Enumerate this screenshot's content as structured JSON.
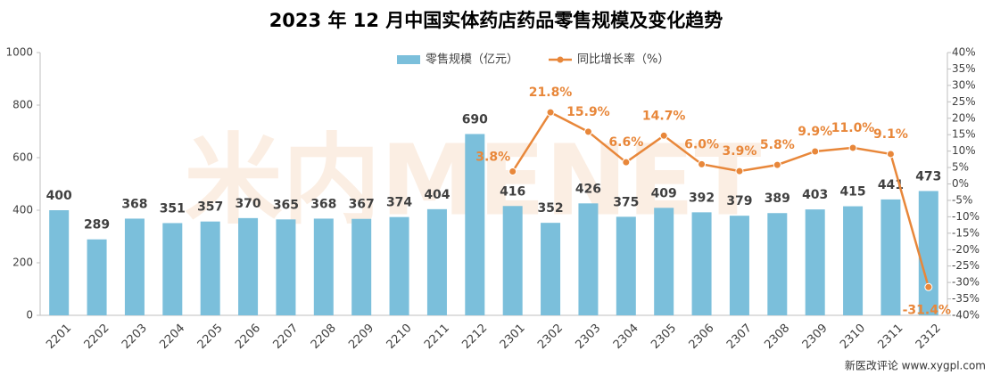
{
  "chart_data": {
    "type": "bar_line",
    "title": "2023 年 12 月中国实体药店药品零售规模及变化趋势",
    "watermark": "米内MENET",
    "source": "新医改评论 www.xygpl.com",
    "categories": [
      "2201",
      "2202",
      "2203",
      "2204",
      "2205",
      "2206",
      "2207",
      "2208",
      "2209",
      "2210",
      "2211",
      "2212",
      "2301",
      "2302",
      "2303",
      "2304",
      "2305",
      "2306",
      "2307",
      "2308",
      "2309",
      "2310",
      "2311",
      "2312"
    ],
    "series": [
      {
        "name": "零售规模（亿元）",
        "type": "bar",
        "color": "#7bbfdb",
        "values": [
          400,
          289,
          368,
          351,
          357,
          370,
          365,
          368,
          367,
          374,
          404,
          690,
          416,
          352,
          426,
          375,
          409,
          392,
          379,
          389,
          403,
          415,
          441,
          473
        ]
      },
      {
        "name": "同比增长率（%）",
        "type": "line",
        "color": "#e8873a",
        "axis": "y2",
        "values": [
          null,
          null,
          null,
          null,
          null,
          null,
          null,
          null,
          null,
          null,
          null,
          null,
          3.8,
          21.8,
          15.9,
          6.6,
          14.7,
          6.0,
          3.9,
          5.8,
          9.9,
          11.0,
          9.1,
          -31.4
        ],
        "value_labels": [
          null,
          null,
          null,
          null,
          null,
          null,
          null,
          null,
          null,
          null,
          null,
          null,
          "3.8%",
          "21.8%",
          "15.9%",
          "6.6%",
          "14.7%",
          "6.0%",
          "3.9%",
          "5.8%",
          "9.9%",
          "11.0%",
          "9.1%",
          "-31.4%"
        ]
      }
    ],
    "ylim": [
      0,
      1000
    ],
    "yticks": [
      0,
      200,
      400,
      600,
      800,
      1000
    ],
    "y2lim": [
      -40,
      40
    ],
    "y2ticks": [
      {
        "value": 40,
        "label": "40%"
      },
      {
        "value": 35,
        "label": "35%"
      },
      {
        "value": 30,
        "label": "30%"
      },
      {
        "value": 25,
        "label": "25%"
      },
      {
        "value": 20,
        "label": "20%"
      },
      {
        "value": 15,
        "label": "15%"
      },
      {
        "value": 10,
        "label": "10%"
      },
      {
        "value": 5,
        "label": "5%"
      },
      {
        "value": 0,
        "label": "0%"
      },
      {
        "value": -5,
        "label": "-5%"
      },
      {
        "value": -10,
        "label": "-10%"
      },
      {
        "value": -15,
        "label": "-15%"
      },
      {
        "value": -20,
        "label": "-20%"
      },
      {
        "value": -25,
        "label": "-25%"
      },
      {
        "value": -30,
        "label": "-30%"
      },
      {
        "value": -35,
        "label": "-35%"
      },
      {
        "value": -40,
        "label": "-40%"
      }
    ],
    "grid": false,
    "legend": "top"
  }
}
